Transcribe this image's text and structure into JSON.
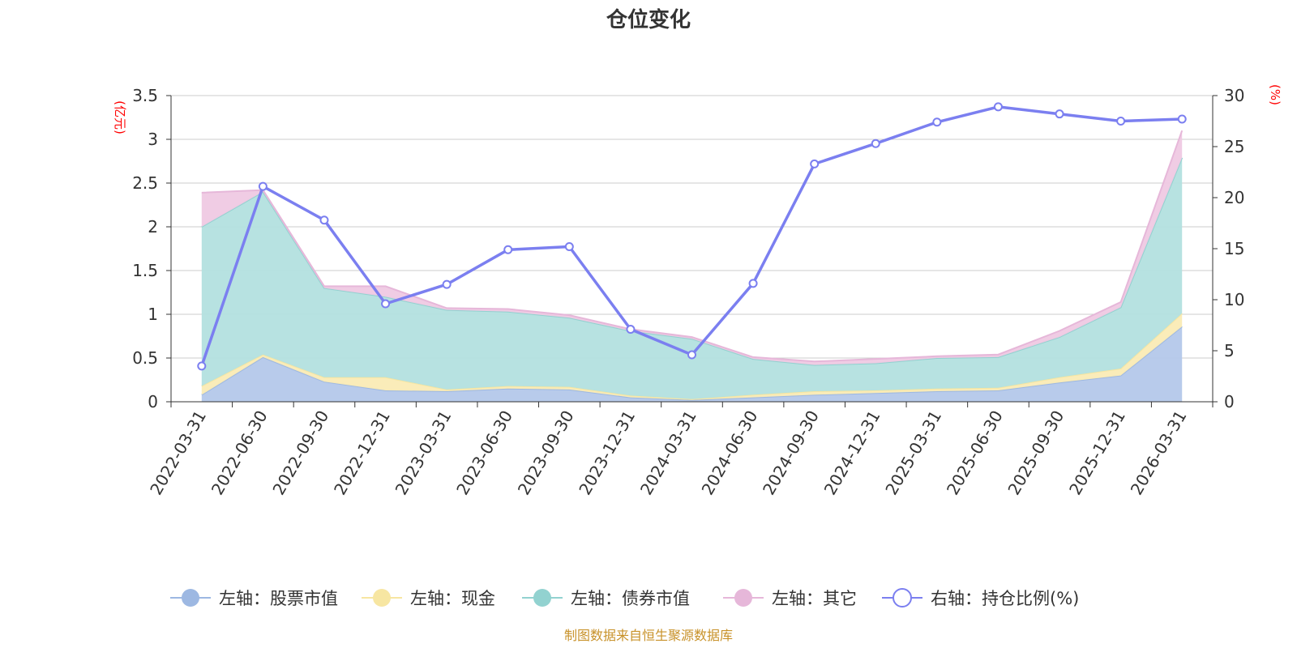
{
  "chart_data": {
    "type": "area",
    "title": "仓位变化",
    "source": "制图数据来自恒生聚源数据库",
    "categories": [
      "2022-03-31",
      "2022-06-30",
      "2022-09-30",
      "2022-12-31",
      "2023-03-31",
      "2023-06-30",
      "2023-09-30",
      "2023-12-31",
      "2024-03-31",
      "2024-06-30",
      "2024-09-30",
      "2024-12-31",
      "2025-03-31",
      "2025-06-30",
      "2025-09-30",
      "2025-12-31",
      "2026-03-31"
    ],
    "left_axis": {
      "unit": "(亿元)",
      "min": 0,
      "max": 3.5,
      "ticks": [
        "0",
        "0.5",
        "1",
        "1.5",
        "2",
        "2.5",
        "3",
        "3.5"
      ]
    },
    "right_axis": {
      "unit": "(%)",
      "min": 0,
      "max": 30,
      "ticks": [
        "0",
        "5",
        "10",
        "15",
        "20",
        "25",
        "30"
      ]
    },
    "series": [
      {
        "name": "左轴：股票市值",
        "axis": "left",
        "stack": true,
        "color": "#9db8e2",
        "fill": "#b4c8ea",
        "values": [
          0.08,
          0.51,
          0.23,
          0.13,
          0.12,
          0.15,
          0.14,
          0.05,
          0.02,
          0.05,
          0.08,
          0.1,
          0.12,
          0.13,
          0.22,
          0.3,
          0.86
        ]
      },
      {
        "name": "左轴：现金",
        "axis": "left",
        "stack": true,
        "color": "#f7e6a2",
        "fill": "#faebb5",
        "values": [
          0.1,
          0.03,
          0.05,
          0.15,
          0.02,
          0.03,
          0.03,
          0.02,
          0.01,
          0.03,
          0.04,
          0.03,
          0.03,
          0.03,
          0.06,
          0.08,
          0.15
        ]
      },
      {
        "name": "左轴：债券市值",
        "axis": "left",
        "stack": true,
        "color": "#92d2d0",
        "fill": "#b3e0df",
        "values": [
          1.82,
          1.86,
          1.02,
          0.92,
          0.91,
          0.85,
          0.79,
          0.74,
          0.69,
          0.41,
          0.3,
          0.31,
          0.35,
          0.35,
          0.46,
          0.7,
          1.78
        ]
      },
      {
        "name": "左轴：其它",
        "axis": "left",
        "stack": true,
        "color": "#e6b7d9",
        "fill": "#efc9e3",
        "values": [
          0.39,
          0.02,
          0.02,
          0.12,
          0.02,
          0.03,
          0.03,
          0.02,
          0.02,
          0.02,
          0.04,
          0.05,
          0.02,
          0.03,
          0.07,
          0.06,
          0.31
        ]
      },
      {
        "name": "右轴：持仓比例(%)",
        "axis": "right",
        "stack": false,
        "color": "#7b7ff0",
        "values": [
          3.5,
          21.1,
          17.8,
          9.6,
          11.5,
          14.9,
          15.2,
          7.1,
          4.6,
          11.6,
          23.3,
          25.3,
          27.4,
          28.9,
          28.2,
          27.5,
          27.7
        ]
      }
    ]
  }
}
